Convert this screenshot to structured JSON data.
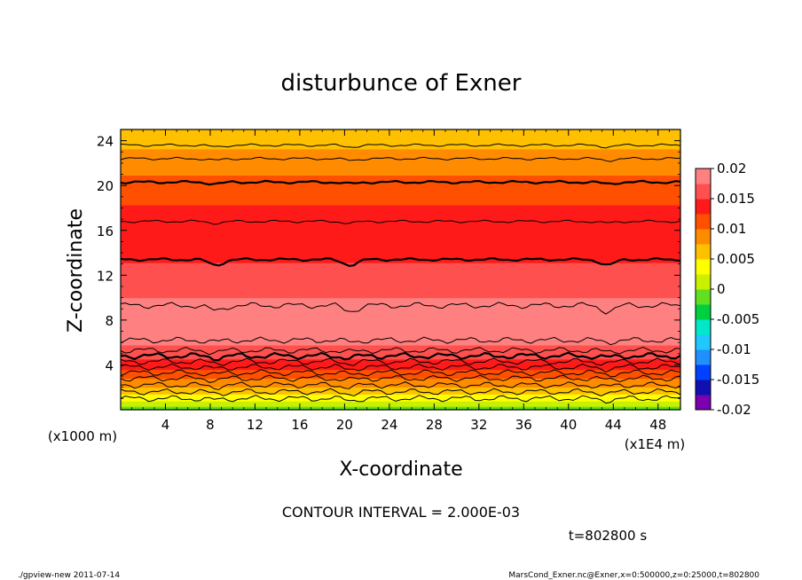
{
  "chart_data": {
    "type": "contour",
    "title": "disturbunce of Exner",
    "xlabel": "X-coordinate",
    "ylabel": "Z-coordinate",
    "x_unit": "(x1E4 m)",
    "y_unit": "(x1000 m)",
    "x_range": [
      0,
      50
    ],
    "y_range": [
      0,
      25
    ],
    "x_ticks": [
      "4",
      "8",
      "12",
      "16",
      "20",
      "24",
      "28",
      "32",
      "36",
      "40",
      "44",
      "48"
    ],
    "y_ticks": [
      "4",
      "8",
      "12",
      "16",
      "20",
      "24"
    ],
    "contour_interval_text": "CONTOUR INTERVAL = 2.000E-03",
    "time_text": "t=802800  s",
    "colorbar": {
      "min": -0.02,
      "max": 0.02,
      "step": 0.0025,
      "labels": [
        "0.02",
        "0.015",
        "0.01",
        "0.005",
        "0",
        "-0.005",
        "-0.01",
        "-0.015",
        "-0.02"
      ],
      "colors": [
        "#7a00b0",
        "#1010b0",
        "#0040ff",
        "#2090ff",
        "#20c8ff",
        "#00e8c8",
        "#00d040",
        "#60e020",
        "#c8f000",
        "#ffff00",
        "#ffc000",
        "#ff8c00",
        "#ff5000",
        "#ff1a1a",
        "#ff5050",
        "#ff8080"
      ]
    },
    "profile": [
      {
        "z": 0.0,
        "value": -0.0015
      },
      {
        "z": 1.0,
        "value": 0.0035
      },
      {
        "z": 2.0,
        "value": 0.0075
      },
      {
        "z": 3.0,
        "value": 0.0105
      },
      {
        "z": 4.0,
        "value": 0.0135
      },
      {
        "z": 5.0,
        "value": 0.016
      },
      {
        "z": 6.0,
        "value": 0.0178
      },
      {
        "z": 7.5,
        "value": 0.0192
      },
      {
        "z": 9.0,
        "value": 0.0185
      },
      {
        "z": 10.5,
        "value": 0.017
      },
      {
        "z": 12.0,
        "value": 0.0158
      },
      {
        "z": 13.5,
        "value": 0.0148
      },
      {
        "z": 16.0,
        "value": 0.014
      },
      {
        "z": 18.0,
        "value": 0.0128
      },
      {
        "z": 20.5,
        "value": 0.0105
      },
      {
        "z": 22.5,
        "value": 0.0085
      },
      {
        "z": 25.0,
        "value": 0.0055
      }
    ],
    "contour_levels_z": [
      1.0,
      1.6,
      2.2,
      2.8,
      3.3,
      3.8,
      4.3,
      4.8,
      5.3,
      6.2,
      9.3,
      13.4,
      16.8,
      20.3,
      22.4,
      23.6
    ],
    "bold_levels_z": [
      4.8,
      13.4,
      20.3
    ]
  },
  "footer": {
    "left": "./gpview-new   2011-07-14",
    "right": "MarsCond_Exner.nc@Exner,x=0:500000,z=0:25000,t=802800"
  }
}
